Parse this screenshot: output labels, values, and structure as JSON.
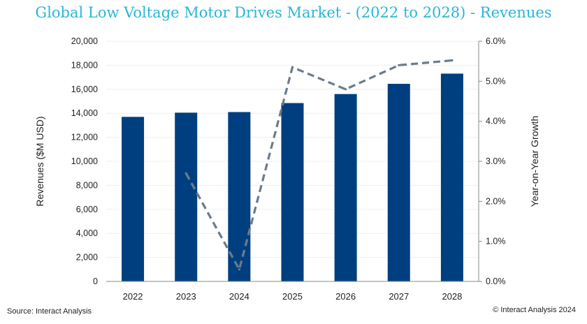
{
  "title": "Global Low Voltage Motor Drives Market - (2022 to 2028) - Revenues",
  "source": "Source: Interact Analysis",
  "copyright": "© Interact Analysis 2024",
  "colors": {
    "bar": "#003f7f",
    "line": "#6b7b8c",
    "title": "#29b6d8",
    "axis": "#888888"
  },
  "chart_data": {
    "type": "bar",
    "categories": [
      "2022",
      "2023",
      "2024",
      "2025",
      "2026",
      "2027",
      "2028"
    ],
    "series": [
      {
        "name": "",
        "type": "bar",
        "axis": "left",
        "values": [
          13700,
          14050,
          14100,
          14850,
          15600,
          16450,
          17300
        ]
      },
      {
        "name": "",
        "type": "line",
        "style": "dashed",
        "axis": "right",
        "values": [
          null,
          2.7,
          0.3,
          5.35,
          4.8,
          5.4,
          5.52
        ]
      }
    ],
    "ylabel": "Revenues ($M USD)",
    "y2label": "Year-on-Year Growth",
    "ylim": [
      0,
      20000
    ],
    "y2lim": [
      0,
      6.0
    ],
    "yticks": [
      "0",
      "2,000",
      "4,000",
      "6,000",
      "8,000",
      "10,000",
      "12,000",
      "14,000",
      "16,000",
      "18,000",
      "20,000"
    ],
    "y2ticks": [
      "0.0%",
      "1.0%",
      "2.0%",
      "3.0%",
      "4.0%",
      "5.0%",
      "6.0%"
    ],
    "grid": true,
    "legend": "none"
  }
}
